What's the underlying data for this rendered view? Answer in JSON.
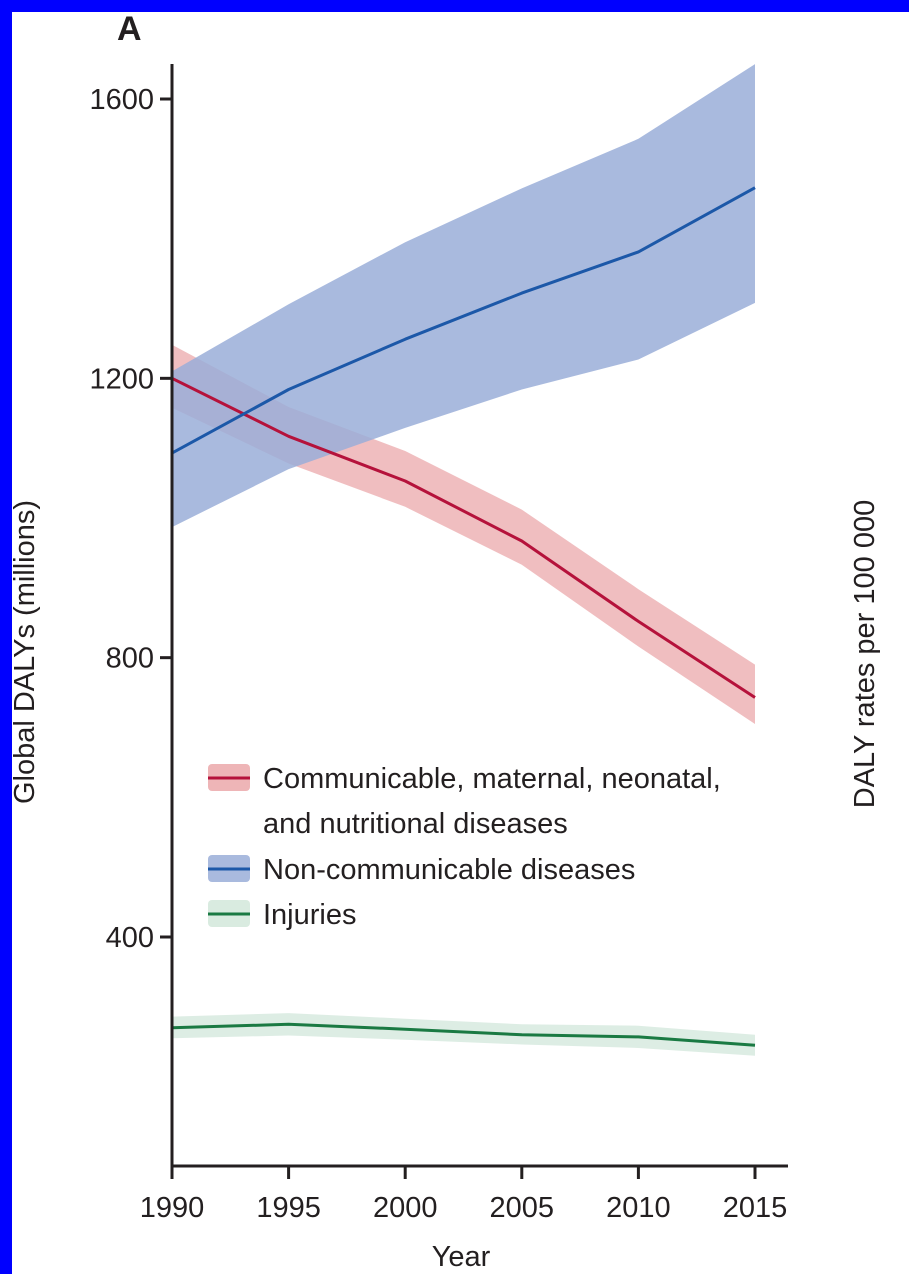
{
  "chart_data": {
    "type": "line",
    "panel_label": "A",
    "title": "",
    "xlabel": "Year",
    "ylabel": "Global DALYs (millions)",
    "secondary_ylabel": "DALY rates per 100 000",
    "x": [
      1990,
      1995,
      2000,
      2005,
      2010,
      2015
    ],
    "xlim": [
      1990,
      2016
    ],
    "ylim": [
      75,
      1650
    ],
    "xticks": [
      1990,
      1995,
      2000,
      2005,
      2010,
      2015
    ],
    "xtick_labels": [
      "1990",
      "1995",
      "2000",
      "2005",
      "2010",
      "2015"
    ],
    "yticks": [
      400,
      800,
      1200,
      1600
    ],
    "ytick_labels": [
      "400",
      "800",
      "1200",
      "1600"
    ],
    "grid": false,
    "legend_position": "center-left",
    "series": [
      {
        "name": "Communicable, maternal, neonatal, and nutritional diseases",
        "legend_lines": [
          "Communicable, maternal, neonatal,",
          "and nutritional diseases"
        ],
        "color": "#b5123b",
        "band_color": "#eaa3a5",
        "values": [
          1200,
          1117,
          1053,
          967,
          852,
          743
        ],
        "lower": [
          1158,
          1078,
          1016,
          933,
          816,
          705
        ],
        "upper": [
          1248,
          1159,
          1096,
          1012,
          898,
          790
        ]
      },
      {
        "name": "Non-communicable diseases",
        "legend_lines": [
          "Non-communicable diseases"
        ],
        "color": "#1c58a8",
        "band_color": "#9aaed8",
        "values": [
          1093,
          1184,
          1256,
          1322,
          1381,
          1473
        ],
        "lower": [
          987,
          1070,
          1129,
          1184,
          1227,
          1308
        ],
        "upper": [
          1210,
          1306,
          1395,
          1472,
          1543,
          1650
        ]
      },
      {
        "name": "Injuries",
        "legend_lines": [
          "Injuries"
        ],
        "color": "#1a7a43",
        "band_color": "#cfe6d8",
        "values": [
          270,
          275,
          268,
          260,
          257,
          245
        ],
        "lower": [
          255,
          259,
          253,
          246,
          241,
          230
        ],
        "upper": [
          286,
          291,
          283,
          275,
          273,
          260
        ]
      }
    ]
  }
}
